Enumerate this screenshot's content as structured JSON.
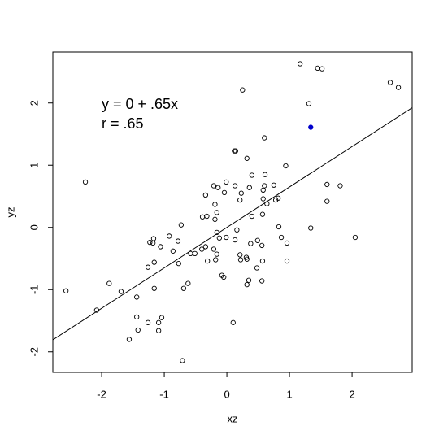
{
  "chart_data": {
    "type": "scatter",
    "xlabel": "xz",
    "ylabel": "yz",
    "annotations": [
      "y = 0 + .65x",
      "r  = .65"
    ],
    "fit_line": {
      "intercept": 0,
      "slope": 0.65,
      "color": "#000000"
    },
    "xlim": [
      -2.78,
      2.96
    ],
    "ylim": [
      -2.33,
      2.82
    ],
    "xticks": [
      -2,
      -1,
      0,
      1,
      2
    ],
    "yticks": [
      -2,
      -1,
      0,
      1,
      2
    ],
    "series": [
      {
        "color": "#000000",
        "x": [
          1.17,
          1.45,
          1.52,
          0.25,
          2.61,
          2.74,
          1.31,
          -2.26,
          0.6,
          0.12,
          0.14,
          0.32,
          0.94,
          0.61,
          0.4,
          -0.01,
          -0.21,
          -0.14,
          0.13,
          0.36,
          0.6,
          0.58,
          0.75,
          1.6,
          1.81,
          -0.34,
          0.23,
          0.21,
          -0.04,
          0.58,
          0.82,
          0.78,
          1.6,
          -0.19,
          0.64,
          0.4,
          0.57,
          -0.39,
          -0.32,
          -0.16,
          -0.19,
          -0.73,
          0.83,
          1.34,
          -0.16,
          0.16,
          -0.01,
          -0.12,
          0.87,
          2.05,
          -1.18,
          -0.92,
          -0.78,
          -1.23,
          -1.17,
          0.13,
          0.49,
          0.38,
          0.56,
          0.96,
          -1.06,
          -0.86,
          -0.4,
          -0.34,
          -0.21,
          -0.51,
          -0.58,
          -0.16,
          0.21,
          0.31,
          0.32,
          -0.31,
          -0.18,
          0.22,
          0.57,
          0.96,
          -1.16,
          -0.77,
          -1.26,
          0.48,
          -0.08,
          -0.05,
          0.35,
          0.56,
          0.32,
          -0.62,
          -1.88,
          -2.57,
          -1.69,
          -1.16,
          -0.69,
          -1.44,
          -2.08,
          -1.44,
          -1.04,
          -1.26,
          -1.09,
          0.1,
          -1.42,
          -1.09,
          -1.56,
          -0.71
        ],
        "values": [
          2.63,
          2.56,
          2.55,
          2.21,
          2.33,
          2.25,
          1.99,
          0.73,
          1.44,
          1.23,
          1.23,
          1.11,
          0.99,
          0.85,
          0.84,
          0.73,
          0.67,
          0.64,
          0.67,
          0.64,
          0.67,
          0.6,
          0.68,
          0.69,
          0.67,
          0.52,
          0.55,
          0.44,
          0.56,
          0.46,
          0.47,
          0.44,
          0.42,
          0.37,
          0.38,
          0.18,
          0.21,
          0.17,
          0.18,
          0.24,
          0.13,
          0.04,
          0.01,
          -0.01,
          -0.08,
          -0.04,
          -0.16,
          -0.17,
          -0.16,
          -0.16,
          -0.25,
          -0.14,
          -0.22,
          -0.24,
          -0.18,
          -0.2,
          -0.21,
          -0.26,
          -0.29,
          -0.25,
          -0.31,
          -0.38,
          -0.35,
          -0.31,
          -0.35,
          -0.42,
          -0.42,
          -0.43,
          -0.44,
          -0.48,
          -0.51,
          -0.54,
          -0.52,
          -0.52,
          -0.54,
          -0.54,
          -0.56,
          -0.58,
          -0.64,
          -0.65,
          -0.77,
          -0.8,
          -0.85,
          -0.86,
          -0.92,
          -0.9,
          -0.9,
          -1.02,
          -1.03,
          -0.98,
          -0.98,
          -1.12,
          -1.33,
          -1.44,
          -1.45,
          -1.53,
          -1.53,
          -1.53,
          -1.65,
          -1.66,
          -1.8,
          -2.14
        ]
      },
      {
        "color": "#0000cc",
        "x": [
          1.34
        ],
        "values": [
          1.61
        ]
      }
    ]
  }
}
